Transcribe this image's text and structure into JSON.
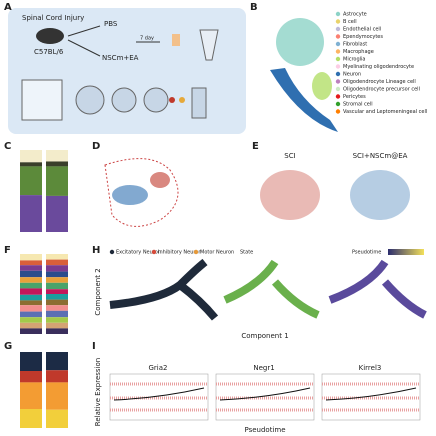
{
  "panels": {
    "A": {
      "letter": "A",
      "injury": "Spinal Cord Injury",
      "strain": "C57BL/6",
      "control": "PBS",
      "treatment": "NSCm+EA",
      "timepoint": "7 day"
    },
    "B": {
      "letter": "B",
      "legend": [
        "Astrocyte",
        "B cell",
        "Endothelial cell",
        "Ependymocytes",
        "Fibroblast",
        "Macrophage",
        "Microglia",
        "Myelinating oligodendrocyte",
        "Neuron",
        "Oligodendrocyte Lineage cell",
        "Oligodendrocyte precursor cell",
        "Pericytes",
        "Stromal cell",
        "Vascular and Leptomeningeal cell"
      ],
      "colors": [
        "#8dd3c7",
        "#e9d36b",
        "#bebada",
        "#fb8072",
        "#80b1d3",
        "#fdb462",
        "#b3de69",
        "#fccde5",
        "#2f6fb0",
        "#bc80bd",
        "#ccebc5",
        "#e31a1c",
        "#33a02c",
        "#ff7f00"
      ]
    },
    "C": {
      "letter": "C",
      "ylim": [
        0,
        100
      ],
      "colors": [
        "#f3eccb",
        "#3a3f2a",
        "#5c8a3a",
        "#6a4a9c"
      ],
      "bars": [
        [
          15,
          5,
          35,
          45
        ],
        [
          14,
          6,
          36,
          44
        ]
      ]
    },
    "D": {
      "letter": "D"
    },
    "E": {
      "letter": "E",
      "left": "SCI",
      "right": "SCI+NSCm@EA"
    },
    "F": {
      "letter": "F",
      "ylim": [
        0,
        100
      ],
      "colors": [
        "#f6e8b1",
        "#d95f3b",
        "#7a3b8f",
        "#2b4c8c",
        "#e8a13a",
        "#4aa36a",
        "#c2185b",
        "#1b9e9e",
        "#8c6d31",
        "#f28e8e",
        "#5b6fb3",
        "#a3c94a",
        "#d4a373",
        "#3a2e5c"
      ],
      "bars": [
        [
          8,
          6,
          7,
          8,
          7,
          7,
          8,
          7,
          6,
          8,
          7,
          7,
          7,
          7
        ],
        [
          7,
          7,
          8,
          7,
          7,
          8,
          6,
          7,
          7,
          7,
          8,
          7,
          7,
          7
        ]
      ]
    },
    "G": {
      "letter": "G",
      "ylim": [
        0,
        100
      ],
      "colors": [
        "#1c2b45",
        "#c0392b",
        "#f39c33",
        "#f2cf3b"
      ],
      "bars": [
        [
          25,
          15,
          35,
          25
        ],
        [
          24,
          16,
          36,
          24
        ]
      ]
    },
    "H": {
      "letter": "H",
      "legend": [
        "Excitatory Neuron",
        "Inhibitory Neuron",
        "Motor Neuron"
      ],
      "colors": [
        "#1f2a3a",
        "#d64b3a",
        "#e69a3a"
      ],
      "state": "State",
      "pseudotime": "Pseudotime",
      "ylabel": "Component 2",
      "xlabel": "Component 1"
    },
    "I": {
      "letter": "I",
      "genes": [
        "Gria2",
        "Negr1",
        "Kirrel3"
      ],
      "ylabel": "Relative Expression",
      "xlabel": "Pseudotime"
    }
  }
}
